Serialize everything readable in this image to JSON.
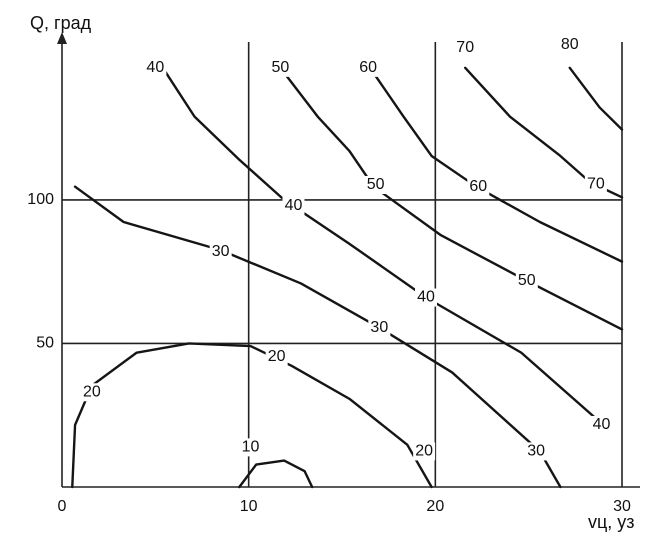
{
  "chart_data": {
    "type": "contour",
    "y_label": "Q, град",
    "x_label": "vц, уз",
    "xlim": [
      0,
      30
    ],
    "ylim": [
      0,
      155
    ],
    "xticks": [
      0,
      10,
      20,
      30
    ],
    "yticks": [
      50,
      100
    ],
    "grid": true,
    "color": "#151515",
    "series": [
      {
        "x": [
          5.4,
          7.1,
          9.5,
          11.9,
          15.4,
          19.5,
          24.6,
          29.0
        ],
        "values": [
          146,
          129,
          114,
          100,
          84.7,
          66,
          46.8,
          21.6
        ]
      },
      {
        "x": [
          11.7,
          13.7,
          15.4,
          16.7,
          20.3,
          24.9,
          30
        ],
        "values": [
          146,
          129,
          117,
          104.6,
          87.7,
          71.8,
          54.9
        ]
      },
      {
        "x": [
          16.5,
          18.3,
          19.8,
          22.2,
          25.6,
          30
        ],
        "values": [
          146,
          129,
          115.3,
          104.6,
          92.3,
          78.5
        ]
      },
      {
        "x": [
          21.6,
          24.0,
          26.7,
          28.3,
          30
        ],
        "values": [
          146,
          129,
          115.3,
          106.1,
          100.9
        ]
      },
      {
        "x": [
          27.2,
          28.8,
          30
        ],
        "values": [
          146,
          132.2,
          124.5
        ]
      },
      {
        "x": [
          0.7,
          3.3,
          8.5,
          12.8,
          17.0,
          20.9,
          25.6,
          26.7
        ],
        "values": [
          104.6,
          92.3,
          82.5,
          70.9,
          55.5,
          39.9,
          12.4,
          0
        ]
      },
      {
        "x": [
          0.55,
          0.7,
          1.6,
          4.0,
          6.8,
          10.1,
          12.3,
          15.4,
          18.5,
          19.8
        ],
        "values": [
          0,
          21.6,
          35.3,
          46.8,
          50,
          49.1,
          42.2,
          30.7,
          14.7,
          0
        ]
      },
      {
        "x": [
          9.5,
          10.4,
          11.9,
          13.0,
          13.4
        ],
        "values": [
          0,
          7.8,
          9.2,
          5.5,
          0
        ]
      }
    ],
    "annotations": [
      {
        "text": "40",
        "x": 5.0,
        "y": 146
      },
      {
        "text": "50",
        "x": 11.7,
        "y": 146
      },
      {
        "text": "60",
        "x": 16.4,
        "y": 146
      },
      {
        "text": "70",
        "x": 21.6,
        "y": 153
      },
      {
        "text": "80",
        "x": 27.2,
        "y": 154
      },
      {
        "text": "40",
        "x": 12.4,
        "y": 97.9
      },
      {
        "text": "50",
        "x": 16.8,
        "y": 105.2
      },
      {
        "text": "60",
        "x": 22.3,
        "y": 104.6
      },
      {
        "text": "70",
        "x": 28.6,
        "y": 105.5
      },
      {
        "text": "30",
        "x": 8.5,
        "y": 81.9
      },
      {
        "text": "40",
        "x": 19.5,
        "y": 66
      },
      {
        "text": "50",
        "x": 24.9,
        "y": 71.8
      },
      {
        "text": "30",
        "x": 17,
        "y": 55.5
      },
      {
        "text": "20",
        "x": 11.5,
        "y": 45.4
      },
      {
        "text": "30",
        "x": 25.4,
        "y": 12.4
      },
      {
        "text": "40",
        "x": 28.9,
        "y": 21.6
      },
      {
        "text": "20",
        "x": 1.6,
        "y": 33
      },
      {
        "text": "20",
        "x": 19.4,
        "y": 12.4
      },
      {
        "text": "10",
        "x": 10.1,
        "y": 13.8
      }
    ]
  }
}
